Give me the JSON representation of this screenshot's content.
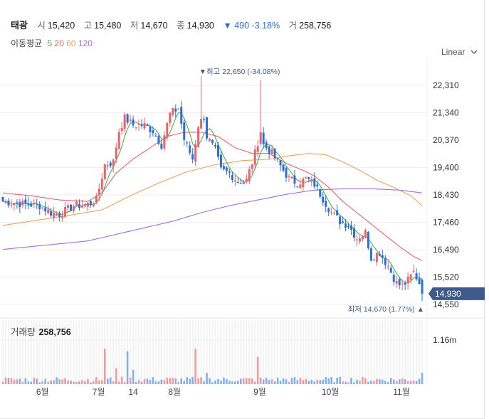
{
  "header": {
    "name": "태광",
    "open_label": "시",
    "open": "15,420",
    "high_label": "고",
    "high": "15,480",
    "low_label": "저",
    "low": "14,670",
    "close_label": "종",
    "close": "14,930",
    "change": "▼ 490 -3.18%",
    "volume_label": "거",
    "volume": "258,756"
  },
  "ma_legend": {
    "title": "이동평균",
    "periods": [
      {
        "label": "5",
        "color": "#4caf50"
      },
      {
        "label": "20",
        "color": "#e8636c"
      },
      {
        "label": "60",
        "color": "#f0a060"
      },
      {
        "label": "120",
        "color": "#9b6ee0"
      }
    ]
  },
  "scale_button": "Linear",
  "volume_panel": {
    "label": "거래량",
    "value": "258,756",
    "tick": "1.16m"
  },
  "chart_data": {
    "type": "candlestick",
    "y_ticks": [
      "22,310",
      "21,340",
      "20,370",
      "19,400",
      "18,430",
      "17,460",
      "16,490",
      "15,520",
      "14,550"
    ],
    "y_tick_values": [
      22310,
      21340,
      20370,
      19400,
      18430,
      17460,
      16490,
      15520,
      14550
    ],
    "x_ticks": [
      "6월",
      "7월",
      "14",
      "8월",
      "9월",
      "10월",
      "11월"
    ],
    "current_price": "14,930",
    "current_value": 14930,
    "max_annotation": "▼최고 22,650 (-34.08%)",
    "max_value": 22650,
    "min_annotation": "최저 14,670 (1.77%) ▲",
    "min_value": 14670,
    "colors": {
      "up": "#e8636c",
      "down": "#2a6fd6",
      "ma5": "#4caf50",
      "ma20": "#e8636c",
      "ma60": "#f0a060",
      "ma120": "#9b6ee0"
    },
    "anchors_close": [
      [
        0,
        18200
      ],
      [
        8,
        18100
      ],
      [
        13,
        18050
      ],
      [
        17,
        17800
      ],
      [
        20,
        17750
      ],
      [
        25,
        18050
      ],
      [
        30,
        18100
      ],
      [
        33,
        18250
      ],
      [
        36,
        19500
      ],
      [
        39,
        19600
      ],
      [
        41,
        20700
      ],
      [
        43,
        21150
      ],
      [
        46,
        20900
      ],
      [
        50,
        20900
      ],
      [
        53,
        20700
      ],
      [
        56,
        20200
      ],
      [
        59,
        21300
      ],
      [
        62,
        21500
      ],
      [
        64,
        20400
      ],
      [
        67,
        19700
      ],
      [
        69,
        20900
      ],
      [
        71,
        21200
      ],
      [
        72,
        20500
      ],
      [
        75,
        20000
      ],
      [
        77,
        19300
      ],
      [
        80,
        19200
      ],
      [
        83,
        18900
      ],
      [
        86,
        18950
      ],
      [
        89,
        19900
      ],
      [
        91,
        20700
      ],
      [
        92,
        20200
      ],
      [
        95,
        19900
      ],
      [
        98,
        19450
      ],
      [
        101,
        19000
      ],
      [
        104,
        18850
      ],
      [
        107,
        19000
      ],
      [
        110,
        18800
      ],
      [
        113,
        18300
      ],
      [
        116,
        17800
      ],
      [
        119,
        17500
      ],
      [
        122,
        17350
      ],
      [
        125,
        16900
      ],
      [
        128,
        17100
      ],
      [
        130,
        16200
      ],
      [
        133,
        16400
      ],
      [
        136,
        15900
      ],
      [
        139,
        15300
      ],
      [
        141,
        15200
      ],
      [
        143,
        15400
      ],
      [
        145,
        15700
      ],
      [
        147,
        15320
      ],
      [
        148,
        14930
      ]
    ],
    "anchors_ma20": [
      [
        0,
        18500
      ],
      [
        10,
        18400
      ],
      [
        20,
        18250
      ],
      [
        30,
        18200
      ],
      [
        35,
        18500
      ],
      [
        40,
        19200
      ],
      [
        46,
        19700
      ],
      [
        52,
        20100
      ],
      [
        58,
        20500
      ],
      [
        64,
        20650
      ],
      [
        70,
        20650
      ],
      [
        76,
        20500
      ],
      [
        82,
        20100
      ],
      [
        88,
        19900
      ],
      [
        94,
        19900
      ],
      [
        100,
        19550
      ],
      [
        106,
        19300
      ],
      [
        110,
        19100
      ],
      [
        115,
        18700
      ],
      [
        120,
        18200
      ],
      [
        125,
        17800
      ],
      [
        130,
        17400
      ],
      [
        135,
        17000
      ],
      [
        140,
        16600
      ],
      [
        145,
        16250
      ],
      [
        148,
        16100
      ]
    ],
    "anchors_ma60": [
      [
        0,
        17350
      ],
      [
        20,
        17650
      ],
      [
        35,
        17900
      ],
      [
        45,
        18400
      ],
      [
        55,
        18850
      ],
      [
        65,
        19250
      ],
      [
        75,
        19500
      ],
      [
        85,
        19650
      ],
      [
        95,
        19700
      ],
      [
        100,
        19800
      ],
      [
        108,
        19900
      ],
      [
        114,
        19850
      ],
      [
        120,
        19600
      ],
      [
        126,
        19300
      ],
      [
        132,
        18950
      ],
      [
        138,
        18700
      ],
      [
        144,
        18400
      ],
      [
        148,
        18050
      ]
    ],
    "anchors_ma120": [
      [
        0,
        16500
      ],
      [
        15,
        16650
      ],
      [
        30,
        16800
      ],
      [
        45,
        17150
      ],
      [
        60,
        17500
      ],
      [
        70,
        17800
      ],
      [
        80,
        18050
      ],
      [
        90,
        18250
      ],
      [
        100,
        18450
      ],
      [
        110,
        18600
      ],
      [
        120,
        18650
      ],
      [
        130,
        18650
      ],
      [
        140,
        18600
      ],
      [
        148,
        18500
      ]
    ],
    "volume_spikes": [
      [
        36,
        0.62
      ],
      [
        44,
        0.58
      ],
      [
        68,
        0.62
      ],
      [
        90,
        0.48
      ],
      [
        72,
        0.2
      ],
      [
        46,
        0.25
      ],
      [
        40,
        0.28
      ]
    ]
  }
}
